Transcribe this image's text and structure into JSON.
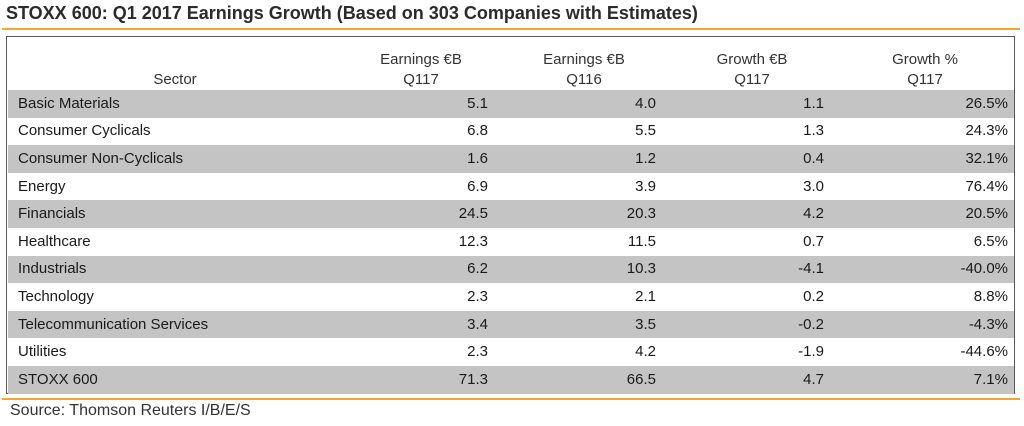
{
  "title": "STOXX 600: Q1 2017 Earnings Growth (Based on 303 Companies with Estimates)",
  "colors": {
    "accent_rule": "#f0a830",
    "row_shade": "#c4c4c4",
    "frame_border": "#5a5a5a"
  },
  "table": {
    "headers": [
      {
        "line1": "",
        "line2": "Sector"
      },
      {
        "line1": "Earnings €B",
        "line2": "Q117"
      },
      {
        "line1": "Earnings €B",
        "line2": "Q116"
      },
      {
        "line1": "Growth €B",
        "line2": "Q117"
      },
      {
        "line1": "Growth %",
        "line2": "Q117"
      }
    ],
    "rows": [
      {
        "sector": "Basic Materials",
        "earnings_q117": "5.1",
        "earnings_q116": "4.0",
        "growth_eur": "1.1",
        "growth_pct": "26.5%",
        "shaded": true
      },
      {
        "sector": "Consumer Cyclicals",
        "earnings_q117": "6.8",
        "earnings_q116": "5.5",
        "growth_eur": "1.3",
        "growth_pct": "24.3%",
        "shaded": false
      },
      {
        "sector": "Consumer Non-Cyclicals",
        "earnings_q117": "1.6",
        "earnings_q116": "1.2",
        "growth_eur": "0.4",
        "growth_pct": "32.1%",
        "shaded": true
      },
      {
        "sector": "Energy",
        "earnings_q117": "6.9",
        "earnings_q116": "3.9",
        "growth_eur": "3.0",
        "growth_pct": "76.4%",
        "shaded": false
      },
      {
        "sector": "Financials",
        "earnings_q117": "24.5",
        "earnings_q116": "20.3",
        "growth_eur": "4.2",
        "growth_pct": "20.5%",
        "shaded": true
      },
      {
        "sector": "Healthcare",
        "earnings_q117": "12.3",
        "earnings_q116": "11.5",
        "growth_eur": "0.7",
        "growth_pct": "6.5%",
        "shaded": false
      },
      {
        "sector": "Industrials",
        "earnings_q117": "6.2",
        "earnings_q116": "10.3",
        "growth_eur": "-4.1",
        "growth_pct": "-40.0%",
        "shaded": true
      },
      {
        "sector": "Technology",
        "earnings_q117": "2.3",
        "earnings_q116": "2.1",
        "growth_eur": "0.2",
        "growth_pct": "8.8%",
        "shaded": false
      },
      {
        "sector": "Telecommunication Services",
        "earnings_q117": "3.4",
        "earnings_q116": "3.5",
        "growth_eur": "-0.2",
        "growth_pct": "-4.3%",
        "shaded": true
      },
      {
        "sector": "Utilities",
        "earnings_q117": "2.3",
        "earnings_q116": "4.2",
        "growth_eur": "-1.9",
        "growth_pct": "-44.6%",
        "shaded": false
      },
      {
        "sector": "STOXX 600",
        "earnings_q117": "71.3",
        "earnings_q116": "66.5",
        "growth_eur": "4.7",
        "growth_pct": "7.1%",
        "shaded": true
      }
    ]
  },
  "source": "Source: Thomson Reuters I/B/E/S"
}
